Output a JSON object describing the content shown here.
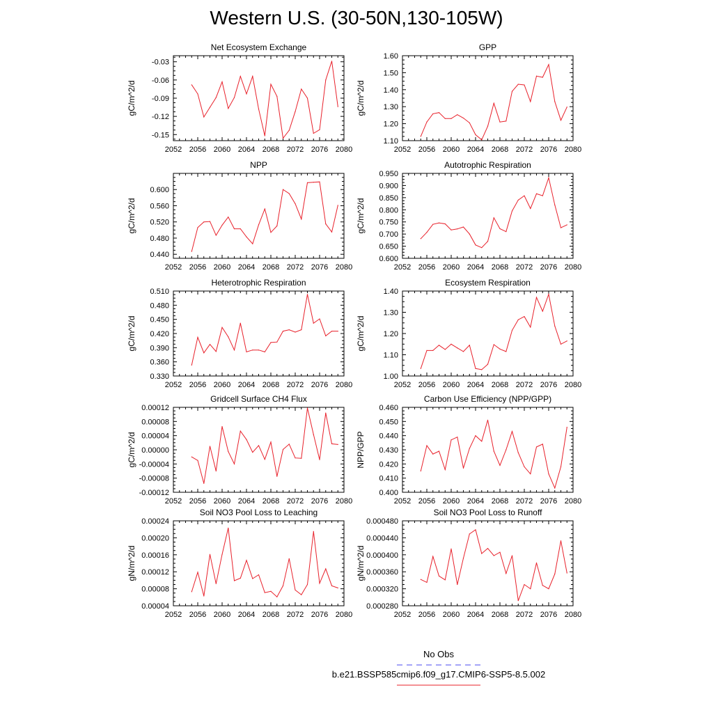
{
  "page": {
    "title": "Western U.S. (30-50N,130-105W)"
  },
  "legend": {
    "obs_label": "No Obs",
    "obs_color": "#4a4af0",
    "model_label": "b.e21.BSSP585cmip6.f09_g17.CMIP6-SSP5-8.5.002",
    "model_color": "#e8202a"
  },
  "chart_data": [
    {
      "type": "line",
      "title": "Net Ecosystem Exchange",
      "ylabel": "gC/m^2/d",
      "xlim": [
        2052,
        2080
      ],
      "xticks": [
        2052,
        2056,
        2060,
        2064,
        2068,
        2072,
        2076,
        2080
      ],
      "ylim": [
        -0.16,
        -0.02
      ],
      "yticks": [
        -0.15,
        -0.12,
        -0.09,
        -0.06,
        -0.03
      ],
      "ytick_labels": [
        "-0.15",
        "-0.12",
        "-0.09",
        "-0.06",
        "-0.03"
      ],
      "series": [
        {
          "x": [
            2055,
            2056,
            2057,
            2058,
            2059,
            2060,
            2061,
            2062,
            2063,
            2064,
            2065,
            2066,
            2067,
            2068,
            2069,
            2070,
            2071,
            2072,
            2073,
            2074,
            2075,
            2076,
            2077,
            2078,
            2079
          ],
          "values": [
            -0.068,
            -0.083,
            -0.121,
            -0.105,
            -0.089,
            -0.063,
            -0.107,
            -0.089,
            -0.054,
            -0.083,
            -0.054,
            -0.108,
            -0.152,
            -0.067,
            -0.087,
            -0.156,
            -0.143,
            -0.112,
            -0.075,
            -0.09,
            -0.148,
            -0.142,
            -0.06,
            -0.029,
            -0.104
          ]
        }
      ]
    },
    {
      "type": "line",
      "title": "GPP",
      "ylabel": "gC/m^2/d",
      "xlim": [
        2052,
        2080
      ],
      "xticks": [
        2052,
        2056,
        2060,
        2064,
        2068,
        2072,
        2076,
        2080
      ],
      "ylim": [
        1.1,
        1.6
      ],
      "yticks": [
        1.1,
        1.2,
        1.3,
        1.4,
        1.5,
        1.6
      ],
      "ytick_labels": [
        "1.10",
        "1.20",
        "1.30",
        "1.40",
        "1.50",
        "1.60"
      ],
      "series": [
        {
          "x": [
            2055,
            2056,
            2057,
            2058,
            2059,
            2060,
            2061,
            2062,
            2063,
            2064,
            2065,
            2066,
            2067,
            2068,
            2069,
            2070,
            2071,
            2072,
            2073,
            2074,
            2075,
            2076,
            2077,
            2078,
            2079
          ],
          "values": [
            1.125,
            1.21,
            1.258,
            1.265,
            1.23,
            1.23,
            1.253,
            1.233,
            1.205,
            1.135,
            1.105,
            1.185,
            1.32,
            1.21,
            1.215,
            1.39,
            1.432,
            1.428,
            1.33,
            1.48,
            1.473,
            1.548,
            1.33,
            1.22,
            1.298
          ]
        }
      ]
    },
    {
      "type": "line",
      "title": "NPP",
      "ylabel": "gC/m^2/d",
      "xlim": [
        2052,
        2080
      ],
      "xticks": [
        2052,
        2056,
        2060,
        2064,
        2068,
        2072,
        2076,
        2080
      ],
      "ylim": [
        0.43,
        0.64
      ],
      "yticks": [
        0.44,
        0.48,
        0.52,
        0.56,
        0.6
      ],
      "ytick_labels": [
        "0.440",
        "0.480",
        "0.520",
        "0.560",
        "0.600"
      ],
      "series": [
        {
          "x": [
            2055,
            2056,
            2057,
            2058,
            2059,
            2060,
            2061,
            2062,
            2063,
            2064,
            2065,
            2066,
            2067,
            2068,
            2069,
            2070,
            2071,
            2072,
            2073,
            2074,
            2075,
            2076,
            2077,
            2078,
            2079
          ],
          "values": [
            0.447,
            0.506,
            0.52,
            0.521,
            0.487,
            0.512,
            0.532,
            0.503,
            0.503,
            0.483,
            0.466,
            0.513,
            0.552,
            0.494,
            0.51,
            0.6,
            0.59,
            0.565,
            0.527,
            0.617,
            0.618,
            0.619,
            0.515,
            0.495,
            0.561
          ]
        }
      ]
    },
    {
      "type": "line",
      "title": "Autotrophic Respiration",
      "ylabel": "gC/m^2/d",
      "xlim": [
        2052,
        2080
      ],
      "xticks": [
        2052,
        2056,
        2060,
        2064,
        2068,
        2072,
        2076,
        2080
      ],
      "ylim": [
        0.6,
        0.95
      ],
      "yticks": [
        0.6,
        0.65,
        0.7,
        0.75,
        0.8,
        0.85,
        0.9,
        0.95
      ],
      "ytick_labels": [
        "0.600",
        "0.650",
        "0.700",
        "0.750",
        "0.800",
        "0.850",
        "0.900",
        "0.950"
      ],
      "series": [
        {
          "x": [
            2055,
            2056,
            2057,
            2058,
            2059,
            2060,
            2061,
            2062,
            2063,
            2064,
            2065,
            2066,
            2067,
            2068,
            2069,
            2070,
            2071,
            2072,
            2073,
            2074,
            2075,
            2076,
            2077,
            2078,
            2079
          ],
          "values": [
            0.681,
            0.707,
            0.74,
            0.746,
            0.742,
            0.717,
            0.721,
            0.729,
            0.7,
            0.655,
            0.644,
            0.67,
            0.767,
            0.722,
            0.71,
            0.795,
            0.84,
            0.858,
            0.805,
            0.866,
            0.858,
            0.932,
            0.82,
            0.726,
            0.738
          ]
        }
      ]
    },
    {
      "type": "line",
      "title": "Heterotrophic Respiration",
      "ylabel": "gC/m^2/d",
      "xlim": [
        2052,
        2080
      ],
      "xticks": [
        2052,
        2056,
        2060,
        2064,
        2068,
        2072,
        2076,
        2080
      ],
      "ylim": [
        0.33,
        0.51
      ],
      "yticks": [
        0.33,
        0.36,
        0.39,
        0.42,
        0.45,
        0.48,
        0.51
      ],
      "ytick_labels": [
        "0.330",
        "0.360",
        "0.390",
        "0.420",
        "0.450",
        "0.480",
        "0.510"
      ],
      "series": [
        {
          "x": [
            2055,
            2056,
            2057,
            2058,
            2059,
            2060,
            2061,
            2062,
            2063,
            2064,
            2065,
            2066,
            2067,
            2068,
            2069,
            2070,
            2071,
            2072,
            2073,
            2074,
            2075,
            2076,
            2077,
            2078,
            2079
          ],
          "values": [
            0.353,
            0.412,
            0.379,
            0.397,
            0.382,
            0.433,
            0.413,
            0.385,
            0.442,
            0.381,
            0.385,
            0.385,
            0.381,
            0.401,
            0.402,
            0.425,
            0.428,
            0.423,
            0.428,
            0.503,
            0.442,
            0.451,
            0.415,
            0.425,
            0.425
          ]
        }
      ]
    },
    {
      "type": "line",
      "title": "Ecosystem Respiration",
      "ylabel": "gC/m^2/d",
      "xlim": [
        2052,
        2080
      ],
      "xticks": [
        2052,
        2056,
        2060,
        2064,
        2068,
        2072,
        2076,
        2080
      ],
      "ylim": [
        1.0,
        1.4
      ],
      "yticks": [
        1.0,
        1.1,
        1.2,
        1.3,
        1.4
      ],
      "ytick_labels": [
        "1.00",
        "1.10",
        "1.20",
        "1.30",
        "1.40"
      ],
      "series": [
        {
          "x": [
            2055,
            2056,
            2057,
            2058,
            2059,
            2060,
            2061,
            2062,
            2063,
            2064,
            2065,
            2066,
            2067,
            2068,
            2069,
            2070,
            2071,
            2072,
            2073,
            2074,
            2075,
            2076,
            2077,
            2078,
            2079
          ],
          "values": [
            1.035,
            1.12,
            1.12,
            1.145,
            1.125,
            1.15,
            1.132,
            1.115,
            1.145,
            1.035,
            1.03,
            1.055,
            1.148,
            1.127,
            1.115,
            1.215,
            1.265,
            1.28,
            1.23,
            1.37,
            1.305,
            1.385,
            1.235,
            1.15,
            1.165
          ]
        }
      ]
    },
    {
      "type": "line",
      "title": "Gridcell Surface CH4 Flux",
      "ylabel": "gC/m^2/d",
      "xlim": [
        2052,
        2080
      ],
      "xticks": [
        2052,
        2056,
        2060,
        2064,
        2068,
        2072,
        2076,
        2080
      ],
      "ylim": [
        -0.00012,
        0.00012
      ],
      "yticks": [
        -0.00012,
        -8e-05,
        -4e-05,
        0.0,
        4e-05,
        8e-05,
        0.00012
      ],
      "ytick_labels": [
        "-0.00012",
        "-0.00008",
        "-0.00004",
        "0.00000",
        "0.00004",
        "0.00008",
        "0.00012"
      ],
      "series": [
        {
          "x": [
            2055,
            2056,
            2057,
            2058,
            2059,
            2060,
            2061,
            2062,
            2063,
            2064,
            2065,
            2066,
            2067,
            2068,
            2069,
            2070,
            2071,
            2072,
            2073,
            2074,
            2075,
            2076,
            2077,
            2078,
            2079
          ],
          "values": [
            -2e-05,
            -3e-05,
            -9.5e-05,
            1e-05,
            -6e-05,
            6.6e-05,
            -5e-06,
            -4e-05,
            5.3e-05,
            2.9e-05,
            -7e-06,
            1.2e-05,
            -2.7e-05,
            2.2e-05,
            -7.5e-05,
            1e-06,
            1.6e-05,
            -2.3e-05,
            -2.4e-05,
            0.000118,
            4.3e-05,
            -2.8e-05,
            0.000104,
            1.7e-05,
            1.5e-05
          ]
        }
      ]
    },
    {
      "type": "line",
      "title": "Carbon Use Efficiency (NPP/GPP)",
      "ylabel": "NPP/GPP",
      "xlim": [
        2052,
        2080
      ],
      "xticks": [
        2052,
        2056,
        2060,
        2064,
        2068,
        2072,
        2076,
        2080
      ],
      "ylim": [
        0.4,
        0.46
      ],
      "yticks": [
        0.4,
        0.41,
        0.42,
        0.43,
        0.44,
        0.45,
        0.46
      ],
      "ytick_labels": [
        "0.400",
        "0.410",
        "0.420",
        "0.430",
        "0.440",
        "0.450",
        "0.460"
      ],
      "series": [
        {
          "x": [
            2055,
            2056,
            2057,
            2058,
            2059,
            2060,
            2061,
            2062,
            2063,
            2064,
            2065,
            2066,
            2067,
            2068,
            2069,
            2070,
            2071,
            2072,
            2073,
            2074,
            2075,
            2076,
            2077,
            2078,
            2079
          ],
          "values": [
            0.415,
            0.433,
            0.427,
            0.429,
            0.416,
            0.437,
            0.439,
            0.417,
            0.431,
            0.44,
            0.436,
            0.451,
            0.429,
            0.419,
            0.43,
            0.443,
            0.428,
            0.418,
            0.413,
            0.432,
            0.434,
            0.413,
            0.403,
            0.418,
            0.446
          ]
        }
      ]
    },
    {
      "type": "line",
      "title": "Soil NO3 Pool Loss to Leaching",
      "ylabel": "gN/m^2/d",
      "xlim": [
        2052,
        2080
      ],
      "xticks": [
        2052,
        2056,
        2060,
        2064,
        2068,
        2072,
        2076,
        2080
      ],
      "ylim": [
        4e-05,
        0.00024
      ],
      "yticks": [
        4e-05,
        8e-05,
        0.00012,
        0.00016,
        0.0002,
        0.00024
      ],
      "ytick_labels": [
        "0.00004",
        "0.00008",
        "0.00012",
        "0.00016",
        "0.00020",
        "0.00024"
      ],
      "series": [
        {
          "x": [
            2055,
            2056,
            2057,
            2058,
            2059,
            2060,
            2061,
            2062,
            2063,
            2064,
            2065,
            2066,
            2067,
            2068,
            2069,
            2070,
            2071,
            2072,
            2073,
            2074,
            2075,
            2076,
            2077,
            2078,
            2079
          ],
          "values": [
            7.3e-05,
            0.000119,
            6.3e-05,
            0.000161,
            9.2e-05,
            0.000161,
            0.000223,
            9.9e-05,
            0.000105,
            0.000147,
            0.000104,
            0.000113,
            7.1e-05,
            7.4e-05,
            6.1e-05,
            8.7e-05,
            0.000151,
            7.7e-05,
            6.6e-05,
            9e-05,
            0.000215,
            9.3e-05,
            0.000127,
            8.7e-05,
            8.2e-05
          ]
        }
      ]
    },
    {
      "type": "line",
      "title": "Soil NO3 Pool Loss to Runoff",
      "ylabel": "gN/m^2/d",
      "xlim": [
        2052,
        2080
      ],
      "xticks": [
        2052,
        2056,
        2060,
        2064,
        2068,
        2072,
        2076,
        2080
      ],
      "ylim": [
        0.00028,
        0.00048
      ],
      "yticks": [
        0.00028,
        0.00032,
        0.00036,
        0.0004,
        0.00044,
        0.00048
      ],
      "ytick_labels": [
        "0.000280",
        "0.000320",
        "0.000360",
        "0.000400",
        "0.000440",
        "0.000480"
      ],
      "series": [
        {
          "x": [
            2055,
            2056,
            2057,
            2058,
            2059,
            2060,
            2061,
            2062,
            2063,
            2064,
            2065,
            2066,
            2067,
            2068,
            2069,
            2070,
            2071,
            2072,
            2073,
            2074,
            2075,
            2076,
            2077,
            2078,
            2079
          ],
          "values": [
            0.000342,
            0.000335,
            0.000396,
            0.00035,
            0.000341,
            0.000414,
            0.00033,
            0.000392,
            0.000449,
            0.000459,
            0.000403,
            0.000415,
            0.000398,
            0.000406,
            0.000356,
            0.000398,
            0.000292,
            0.00033,
            0.00032,
            0.000381,
            0.000328,
            0.00032,
            0.000355,
            0.000433,
            0.000357
          ]
        }
      ]
    }
  ]
}
